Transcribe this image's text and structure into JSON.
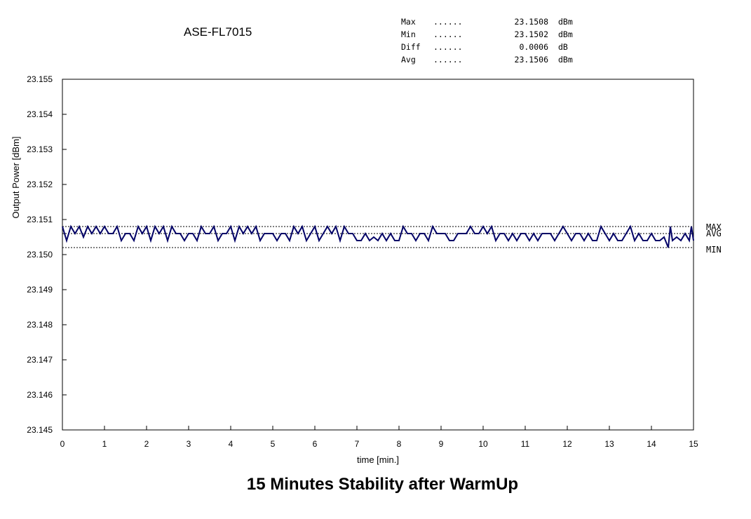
{
  "header": {
    "model": "ASE-FL7015",
    "stats": [
      {
        "label": "Max",
        "dots": "......",
        "value": "23.1508",
        "unit": "dBm"
      },
      {
        "label": "Min",
        "dots": "......",
        "value": "23.1502",
        "unit": "dBm"
      },
      {
        "label": "Diff",
        "dots": "......",
        "value": "0.0006",
        "unit": "dB"
      },
      {
        "label": "Avg",
        "dots": "......",
        "value": "23.1506",
        "unit": "dBm"
      }
    ]
  },
  "caption": "15 Minutes Stability after WarmUp",
  "chart_data": {
    "type": "line",
    "xlabel": "time [min.]",
    "ylabel": "Output Power [dBm]",
    "xlim": [
      0,
      15
    ],
    "ylim": [
      23.145,
      23.155
    ],
    "x_ticks": [
      "0",
      "1",
      "2",
      "3",
      "4",
      "5",
      "6",
      "7",
      "8",
      "9",
      "10",
      "11",
      "12",
      "13",
      "14",
      "15"
    ],
    "y_ticks": [
      "23.155",
      "23.154",
      "23.153",
      "23.152",
      "23.151",
      "23.150",
      "23.149",
      "23.148",
      "23.147",
      "23.146",
      "23.145"
    ],
    "reference_lines": [
      {
        "label": "MAX",
        "value": 23.1508
      },
      {
        "label": "AVG",
        "value": 23.1506
      },
      {
        "label": "MIN",
        "value": 23.1502
      }
    ],
    "series": [
      {
        "color": "#000066",
        "x": [
          0.0,
          0.1,
          0.2,
          0.3,
          0.4,
          0.5,
          0.6,
          0.7,
          0.8,
          0.9,
          1.0,
          1.1,
          1.2,
          1.3,
          1.4,
          1.5,
          1.6,
          1.7,
          1.8,
          1.9,
          2.0,
          2.1,
          2.2,
          2.3,
          2.4,
          2.5,
          2.6,
          2.7,
          2.8,
          2.9,
          3.0,
          3.1,
          3.2,
          3.3,
          3.4,
          3.5,
          3.6,
          3.7,
          3.8,
          3.9,
          4.0,
          4.1,
          4.2,
          4.3,
          4.4,
          4.5,
          4.6,
          4.7,
          4.8,
          4.9,
          5.0,
          5.1,
          5.2,
          5.3,
          5.4,
          5.5,
          5.6,
          5.7,
          5.8,
          5.9,
          6.0,
          6.1,
          6.2,
          6.3,
          6.4,
          6.5,
          6.6,
          6.7,
          6.8,
          6.9,
          7.0,
          7.1,
          7.2,
          7.3,
          7.4,
          7.5,
          7.6,
          7.7,
          7.8,
          7.9,
          8.0,
          8.1,
          8.2,
          8.3,
          8.4,
          8.5,
          8.6,
          8.7,
          8.8,
          8.9,
          9.0,
          9.1,
          9.2,
          9.3,
          9.4,
          9.5,
          9.6,
          9.7,
          9.8,
          9.9,
          10.0,
          10.1,
          10.2,
          10.3,
          10.4,
          10.5,
          10.6,
          10.7,
          10.8,
          10.9,
          11.0,
          11.1,
          11.2,
          11.3,
          11.4,
          11.5,
          11.6,
          11.7,
          11.8,
          11.9,
          12.0,
          12.1,
          12.2,
          12.3,
          12.4,
          12.5,
          12.6,
          12.7,
          12.8,
          12.9,
          13.0,
          13.1,
          13.2,
          13.3,
          13.4,
          13.5,
          13.6,
          13.7,
          13.8,
          13.9,
          14.0,
          14.1,
          14.2,
          14.3,
          14.4,
          14.45,
          14.5,
          14.6,
          14.7,
          14.8,
          14.9,
          14.95,
          15.0
        ],
        "y": [
          23.1508,
          23.1504,
          23.1508,
          23.1506,
          23.1508,
          23.1505,
          23.1508,
          23.1506,
          23.1508,
          23.1506,
          23.1508,
          23.1506,
          23.1506,
          23.1508,
          23.1504,
          23.1506,
          23.1506,
          23.1504,
          23.1508,
          23.1506,
          23.1508,
          23.1504,
          23.1508,
          23.1506,
          23.1508,
          23.1504,
          23.1508,
          23.1506,
          23.1506,
          23.1504,
          23.1506,
          23.1506,
          23.1504,
          23.1508,
          23.1506,
          23.1506,
          23.1508,
          23.1504,
          23.1506,
          23.1506,
          23.1508,
          23.1504,
          23.1508,
          23.1506,
          23.1508,
          23.1506,
          23.1508,
          23.1504,
          23.1506,
          23.1506,
          23.1506,
          23.1504,
          23.1506,
          23.1506,
          23.1504,
          23.1508,
          23.1506,
          23.1508,
          23.1504,
          23.1506,
          23.1508,
          23.1504,
          23.1506,
          23.1508,
          23.1506,
          23.1508,
          23.1504,
          23.1508,
          23.1506,
          23.1506,
          23.1504,
          23.1504,
          23.1506,
          23.1504,
          23.1505,
          23.1504,
          23.1506,
          23.1504,
          23.1506,
          23.1504,
          23.1504,
          23.1508,
          23.1506,
          23.1506,
          23.1504,
          23.1506,
          23.1506,
          23.1504,
          23.1508,
          23.1506,
          23.1506,
          23.1506,
          23.1504,
          23.1504,
          23.1506,
          23.1506,
          23.1506,
          23.1508,
          23.1506,
          23.1506,
          23.1508,
          23.1506,
          23.1508,
          23.1504,
          23.1506,
          23.1506,
          23.1504,
          23.1506,
          23.1504,
          23.1506,
          23.1506,
          23.1504,
          23.1506,
          23.1504,
          23.1506,
          23.1506,
          23.1506,
          23.1504,
          23.1506,
          23.1508,
          23.1506,
          23.1504,
          23.1506,
          23.1506,
          23.1504,
          23.1506,
          23.1504,
          23.1504,
          23.1508,
          23.1506,
          23.1504,
          23.1506,
          23.1504,
          23.1504,
          23.1506,
          23.1508,
          23.1504,
          23.1506,
          23.1504,
          23.1504,
          23.1506,
          23.1504,
          23.1504,
          23.1505,
          23.1502,
          23.1508,
          23.1504,
          23.1505,
          23.1504,
          23.1506,
          23.1504,
          23.1508,
          23.1504
        ]
      }
    ],
    "grid": false,
    "legend": "none"
  }
}
